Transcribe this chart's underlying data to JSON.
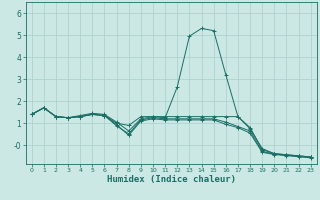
{
  "xlabel": "Humidex (Indice chaleur)",
  "bg_color": "#cce8e5",
  "grid_color": "#aacfcc",
  "line_color": "#1a6e65",
  "spine_color": "#1a6e65",
  "tick_color": "#1a6e65",
  "xlim": [
    -0.5,
    23.5
  ],
  "ylim": [
    -0.85,
    6.5
  ],
  "yticks": [
    0,
    1,
    2,
    3,
    4,
    5,
    6
  ],
  "ytick_labels": [
    "-0",
    "1",
    "2",
    "3",
    "4",
    "5",
    "6"
  ],
  "xticks": [
    0,
    1,
    2,
    3,
    4,
    5,
    6,
    7,
    8,
    9,
    10,
    11,
    12,
    13,
    14,
    15,
    16,
    17,
    18,
    19,
    20,
    21,
    22,
    23
  ],
  "series": [
    {
      "x": [
        0,
        1,
        2,
        3,
        4,
        5,
        6,
        7,
        8,
        9,
        10,
        11,
        12,
        13,
        14,
        15,
        16,
        17,
        18,
        19,
        20,
        21,
        22,
        23
      ],
      "y": [
        1.4,
        1.7,
        1.3,
        1.25,
        1.3,
        1.4,
        1.35,
        1.0,
        0.9,
        1.3,
        1.3,
        1.3,
        1.3,
        1.3,
        1.3,
        1.3,
        1.3,
        1.3,
        0.8,
        -0.2,
        -0.38,
        -0.43,
        -0.48,
        -0.53
      ]
    },
    {
      "x": [
        0,
        1,
        2,
        3,
        4,
        5,
        6,
        7,
        8,
        9,
        10,
        11,
        12,
        13,
        14,
        15,
        16,
        17,
        18,
        19,
        20,
        21,
        22,
        23
      ],
      "y": [
        1.4,
        1.7,
        1.3,
        1.25,
        1.35,
        1.45,
        1.4,
        1.05,
        0.65,
        1.2,
        1.3,
        1.25,
        2.65,
        4.95,
        5.3,
        5.2,
        3.2,
        1.3,
        0.75,
        -0.15,
        -0.38,
        -0.43,
        -0.48,
        -0.53
      ]
    },
    {
      "x": [
        0,
        1,
        2,
        3,
        4,
        5,
        6,
        7,
        8,
        9,
        10,
        11,
        12,
        13,
        14,
        15,
        16,
        17,
        18,
        19,
        20,
        21,
        22,
        23
      ],
      "y": [
        1.4,
        1.7,
        1.3,
        1.25,
        1.3,
        1.4,
        1.35,
        0.88,
        0.52,
        1.15,
        1.25,
        1.2,
        1.2,
        1.2,
        1.2,
        1.2,
        1.05,
        0.85,
        0.65,
        -0.28,
        -0.4,
        -0.45,
        -0.5,
        -0.55
      ]
    },
    {
      "x": [
        0,
        1,
        2,
        3,
        4,
        5,
        6,
        7,
        8,
        9,
        10,
        11,
        12,
        13,
        14,
        15,
        16,
        17,
        18,
        19,
        20,
        21,
        22,
        23
      ],
      "y": [
        1.4,
        1.7,
        1.3,
        1.25,
        1.3,
        1.4,
        1.35,
        0.93,
        0.45,
        1.1,
        1.2,
        1.15,
        1.15,
        1.15,
        1.15,
        1.15,
        0.95,
        0.8,
        0.55,
        -0.32,
        -0.42,
        -0.47,
        -0.52,
        -0.57
      ]
    }
  ]
}
